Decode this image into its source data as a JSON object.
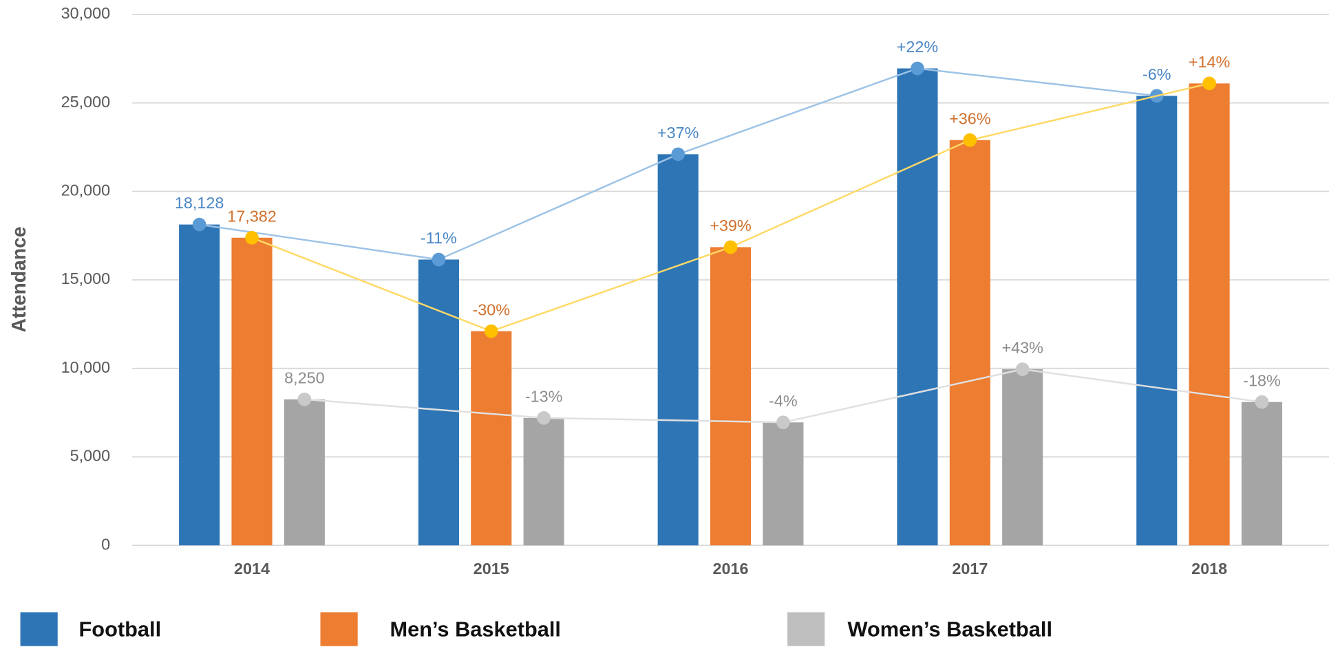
{
  "chart_data": {
    "type": "bar_line",
    "y_label": "Attendance",
    "categories": [
      "2014",
      "2015",
      "2016",
      "2017",
      "2018"
    ],
    "series": [
      {
        "name": "Football",
        "color": "#2e75b6",
        "line_color": "#9dc3e6",
        "marker_color": "#5b9bd5",
        "label_color": "#4a86c5",
        "values": [
          18128,
          16150,
          22100,
          26950,
          25400
        ],
        "value_labels": [
          "18,128",
          null,
          null,
          null,
          null
        ],
        "change_labels": [
          null,
          "-11%",
          "+37%",
          "+22%",
          "-6%"
        ]
      },
      {
        "name": "Men’s Basketball",
        "color": "#ed7d31",
        "line_color": "#ffd966",
        "marker_color": "#ffc000",
        "label_color": "#d0702c",
        "values": [
          17382,
          12100,
          16850,
          22900,
          26100
        ],
        "value_labels": [
          "17,382",
          null,
          null,
          null,
          null
        ],
        "change_labels": [
          null,
          "-30%",
          "+39%",
          "+36%",
          "+14%"
        ]
      },
      {
        "name": "Women’s Basketball",
        "color": "#a5a5a5",
        "line_color": "#e0e0e0",
        "marker_color": "#c9c9c9",
        "label_color": "#8c8c8c",
        "values": [
          8250,
          7200,
          6950,
          9950,
          8100
        ],
        "value_labels": [
          "8,250",
          null,
          null,
          null,
          null
        ],
        "change_labels": [
          null,
          "-13%",
          "-4%",
          "+43%",
          "-18%"
        ]
      }
    ],
    "ylim": [
      0,
      30000
    ],
    "yticks": [
      0,
      {
        "value": 5000,
        "label": "5,000"
      },
      {
        "value": 10000,
        "label": "10,000"
      },
      {
        "value": 15000,
        "label": "15,000"
      },
      {
        "value": 20000,
        "label": "20,000"
      },
      {
        "value": 25000,
        "label": "25,000"
      },
      {
        "value": 30000,
        "label": "30,000"
      }
    ],
    "grid": true
  }
}
